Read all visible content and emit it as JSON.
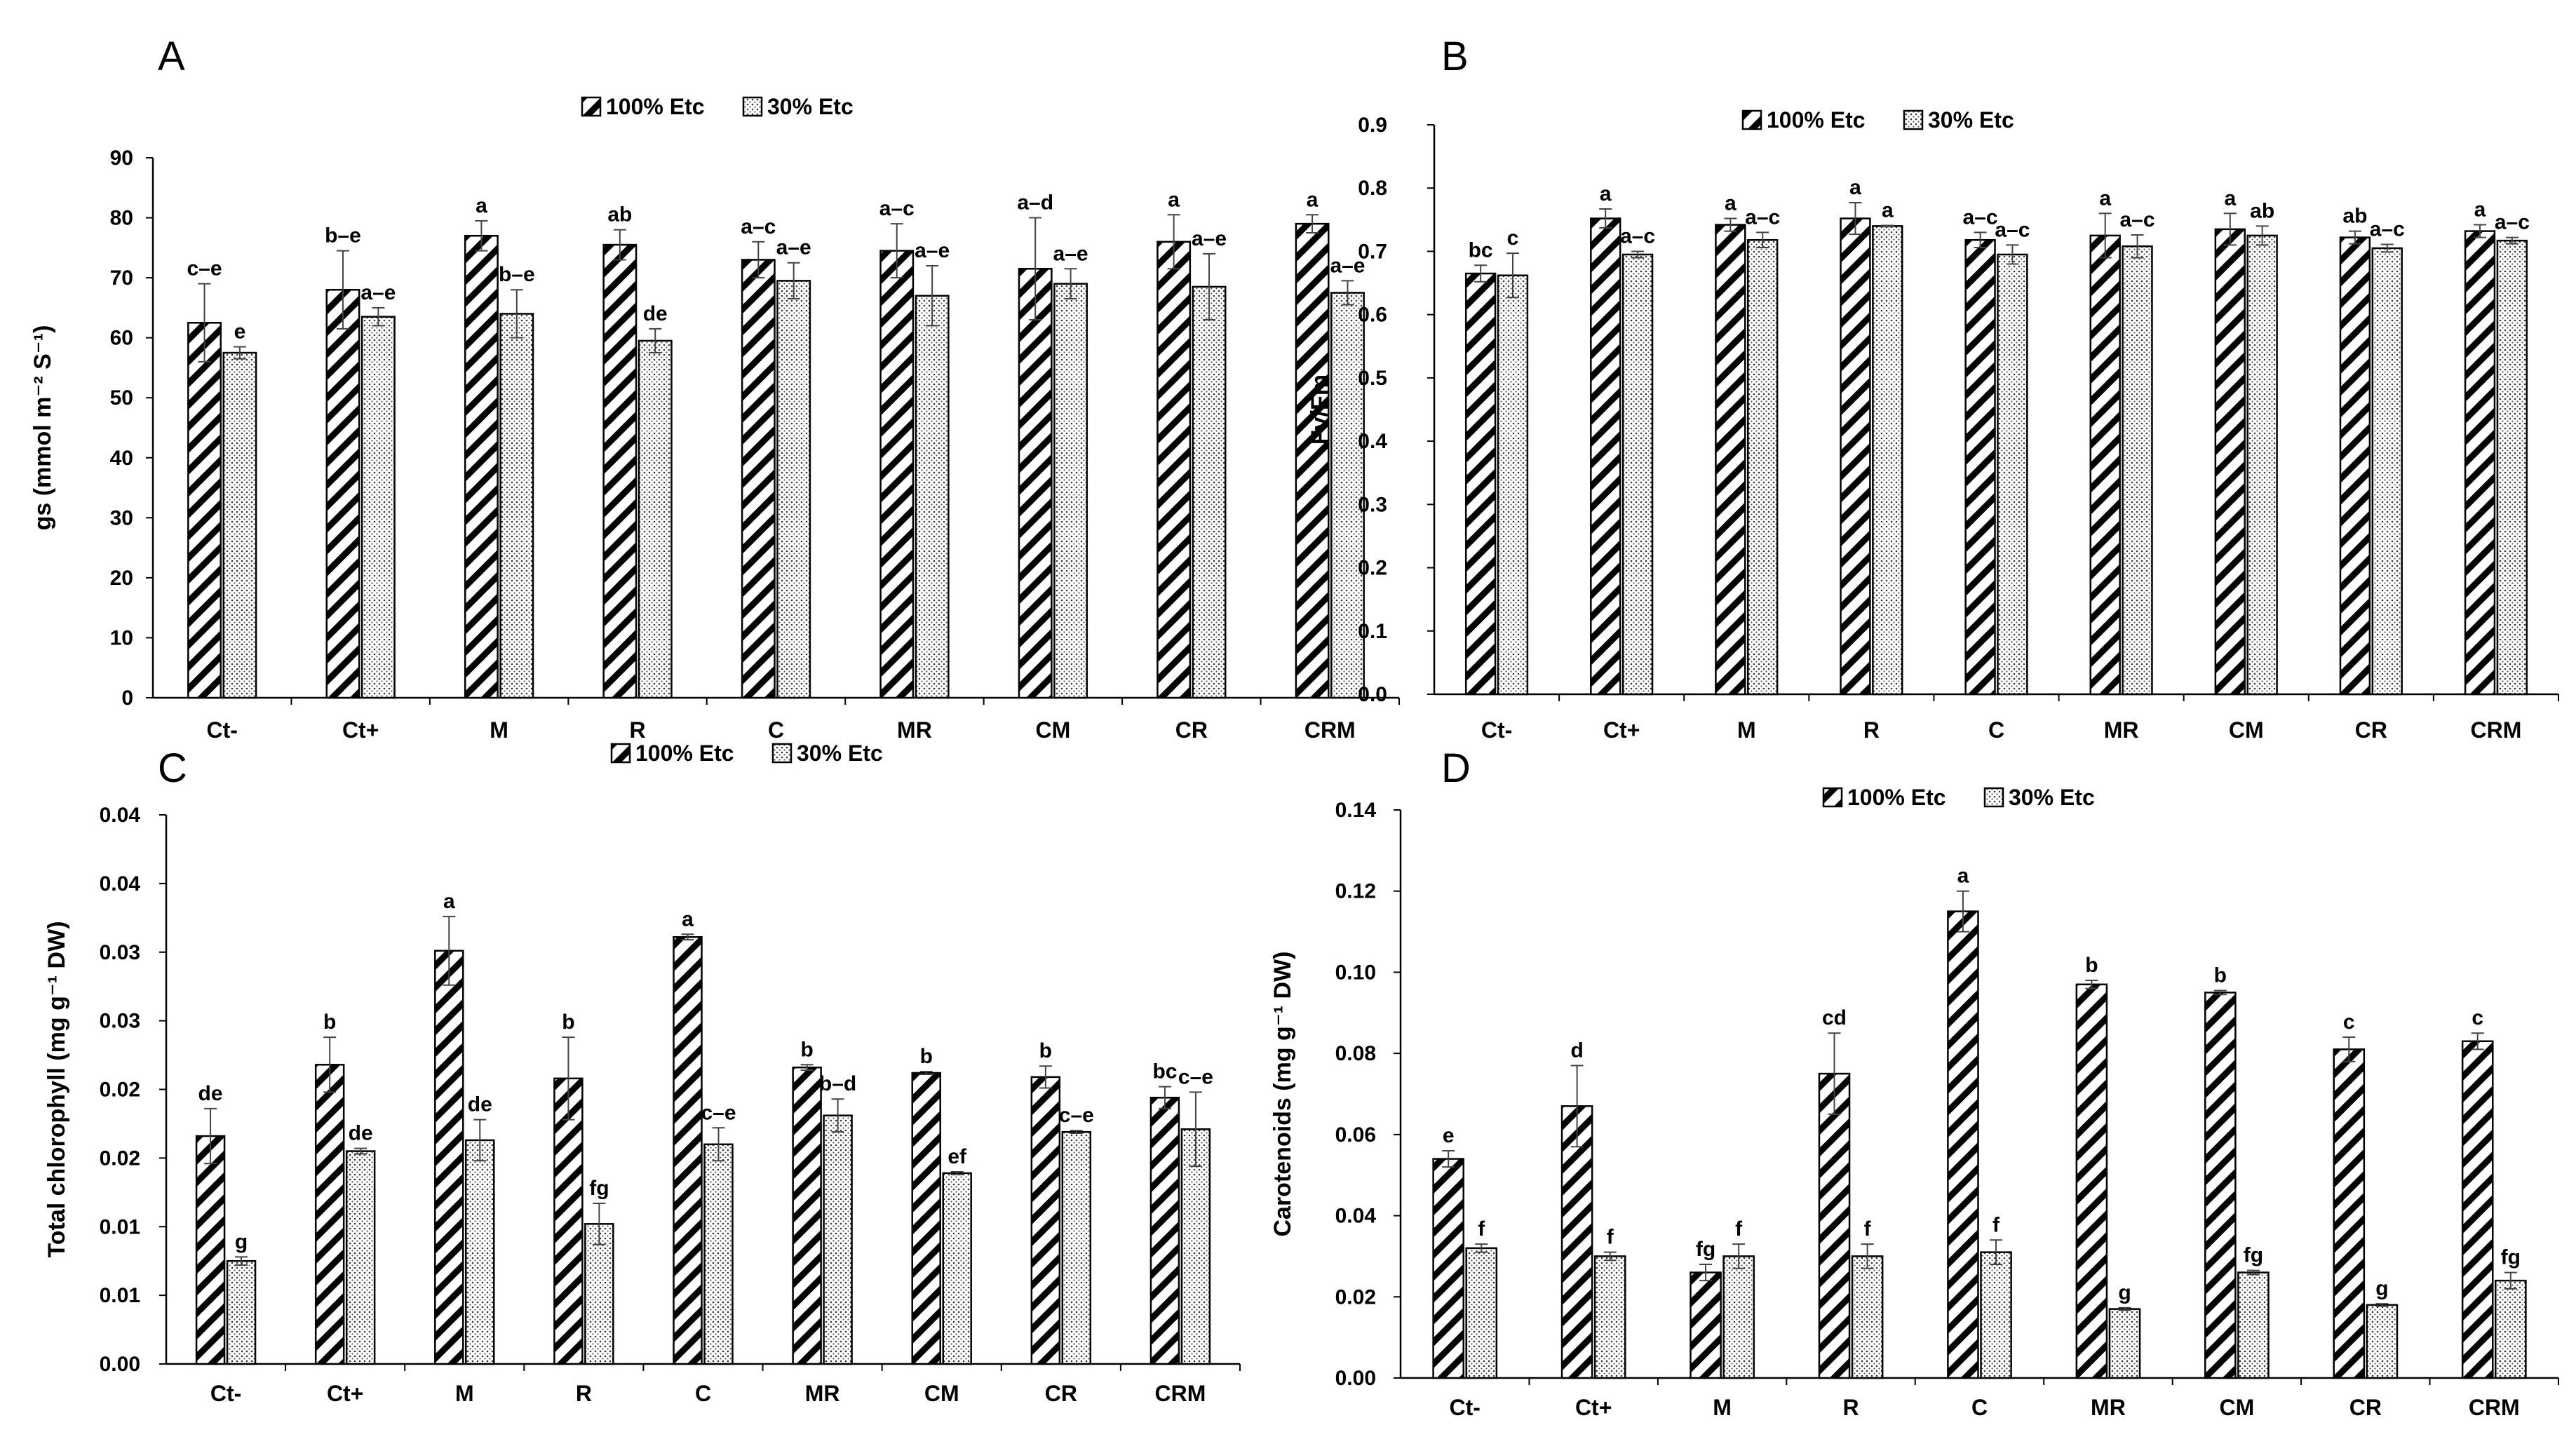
{
  "colors": {
    "bar_stroke": "#000000",
    "hatch_line": "#000000",
    "dot_fill": "#333333",
    "axis": "#000000",
    "background": "#ffffff"
  },
  "legend": {
    "series1": "100% Etc",
    "series2": "30% Etc"
  },
  "chart_data": [
    {
      "panel": "A",
      "type": "bar",
      "ylabel": "gs (mmol m⁻² S⁻¹)",
      "ylim": [
        0,
        90
      ],
      "yticks": [
        "0",
        "10",
        "20",
        "30",
        "40",
        "50",
        "60",
        "70",
        "80",
        "90"
      ],
      "categories": [
        "Ct-",
        "Ct+",
        "M",
        "R",
        "C",
        "MR",
        "CM",
        "CR",
        "CRM"
      ],
      "series": [
        {
          "name": "100% Etc",
          "values": [
            62.5,
            68,
            77,
            75.5,
            73,
            74.5,
            71.5,
            76,
            79
          ],
          "errors": [
            6.5,
            6.5,
            2.5,
            2.5,
            3,
            4.5,
            8.5,
            4.5,
            1.5
          ],
          "labels": [
            "c–e",
            "b–e",
            "a",
            "ab",
            "a–c",
            "a–c",
            "a–d",
            "a",
            "a"
          ]
        },
        {
          "name": "30% Etc",
          "values": [
            57.5,
            63.5,
            64,
            59.5,
            69.5,
            67,
            69,
            68.5,
            67.5
          ],
          "errors": [
            1,
            1.5,
            4,
            2,
            3,
            5,
            2.5,
            5.5,
            2
          ],
          "labels": [
            "e",
            "a–e",
            "b–e",
            "de",
            "a–e",
            "a–e",
            "a–e",
            "a–e",
            "a–e"
          ]
        }
      ]
    },
    {
      "panel": "B",
      "type": "bar",
      "ylabel": "Fv/Fm",
      "ylim": [
        0,
        0.9
      ],
      "yticks": [
        "0.0",
        "0.1",
        "0.2",
        "0.3",
        "0.4",
        "0.5",
        "0.6",
        "0.7",
        "0.8",
        "0.9"
      ],
      "categories": [
        "Ct-",
        "Ct+",
        "M",
        "R",
        "C",
        "MR",
        "CM",
        "CR",
        "CRM"
      ],
      "series": [
        {
          "name": "100% Etc",
          "values": [
            0.665,
            0.752,
            0.742,
            0.752,
            0.718,
            0.725,
            0.735,
            0.722,
            0.732
          ],
          "errors": [
            0.013,
            0.015,
            0.01,
            0.025,
            0.012,
            0.035,
            0.025,
            0.01,
            0.01
          ],
          "labels": [
            "bc",
            "a",
            "a",
            "a",
            "a–c",
            "a",
            "a",
            "ab",
            "a"
          ]
        },
        {
          "name": "30% Etc",
          "values": [
            0.662,
            0.695,
            0.718,
            0.74,
            0.695,
            0.708,
            0.725,
            0.705,
            0.717
          ],
          "errors": [
            0.035,
            0.005,
            0.012,
            0.001,
            0.015,
            0.018,
            0.015,
            0.006,
            0.005
          ],
          "labels": [
            "c",
            "a–c",
            "a–c",
            "a",
            "a–c",
            "a–c",
            "ab",
            "a–c",
            "a–c"
          ]
        }
      ]
    },
    {
      "panel": "C",
      "type": "bar",
      "ylabel": "Total chlorophyll (mg g⁻¹ DW)",
      "ylim": [
        0,
        0.04
      ],
      "yticks": [
        "0.00",
        "0.01",
        "0.01",
        "0.02",
        "0.02",
        "0.03",
        "0.03",
        "0.04",
        "0.04"
      ],
      "categories": [
        "Ct-",
        "Ct+",
        "M",
        "R",
        "C",
        "MR",
        "CM",
        "CR",
        "CRM"
      ],
      "series": [
        {
          "name": "100% Etc",
          "values": [
            0.0166,
            0.0218,
            0.0301,
            0.0208,
            0.0311,
            0.0216,
            0.0212,
            0.0209,
            0.0194
          ],
          "errors": [
            0.002,
            0.002,
            0.0025,
            0.003,
            0.0002,
            0.0002,
            0.0001,
            0.0008,
            0.0008
          ],
          "labels": [
            "de",
            "b",
            "a",
            "b",
            "a",
            "b",
            "b",
            "b",
            "bc"
          ]
        },
        {
          "name": "30% Etc",
          "values": [
            0.0075,
            0.0155,
            0.0163,
            0.0102,
            0.016,
            0.0181,
            0.0139,
            0.0169,
            0.0171
          ],
          "errors": [
            0.0003,
            0.0002,
            0.0015,
            0.0015,
            0.0012,
            0.0012,
            0.0001,
            0.0001,
            0.0027
          ],
          "labels": [
            "g",
            "de",
            "de",
            "fg",
            "c–e",
            "b–d",
            "ef",
            "c–e",
            "c–e"
          ]
        }
      ]
    },
    {
      "panel": "D",
      "type": "bar",
      "ylabel": "Carotenoids (mg g⁻¹ DW)",
      "ylim": [
        0,
        0.14
      ],
      "yticks": [
        "0.00",
        "0.02",
        "0.04",
        "0.06",
        "0.08",
        "0.10",
        "0.12",
        "0.14"
      ],
      "categories": [
        "Ct-",
        "Ct+",
        "M",
        "R",
        "C",
        "MR",
        "CM",
        "CR",
        "CRM"
      ],
      "series": [
        {
          "name": "100% Etc",
          "values": [
            0.054,
            0.067,
            0.026,
            0.075,
            0.115,
            0.097,
            0.095,
            0.081,
            0.083
          ],
          "errors": [
            0.002,
            0.01,
            0.002,
            0.01,
            0.005,
            0.001,
            0.0005,
            0.003,
            0.002
          ],
          "labels": [
            "e",
            "d",
            "fg",
            "cd",
            "a",
            "b",
            "b",
            "c",
            "c"
          ]
        },
        {
          "name": "30% Etc",
          "values": [
            0.032,
            0.03,
            0.03,
            0.03,
            0.031,
            0.017,
            0.026,
            0.018,
            0.024
          ],
          "errors": [
            0.001,
            0.001,
            0.003,
            0.003,
            0.003,
            0.0003,
            0.0005,
            0.0003,
            0.002
          ],
          "labels": [
            "f",
            "f",
            "f",
            "f",
            "f",
            "g",
            "fg",
            "g",
            "fg"
          ]
        }
      ]
    }
  ]
}
